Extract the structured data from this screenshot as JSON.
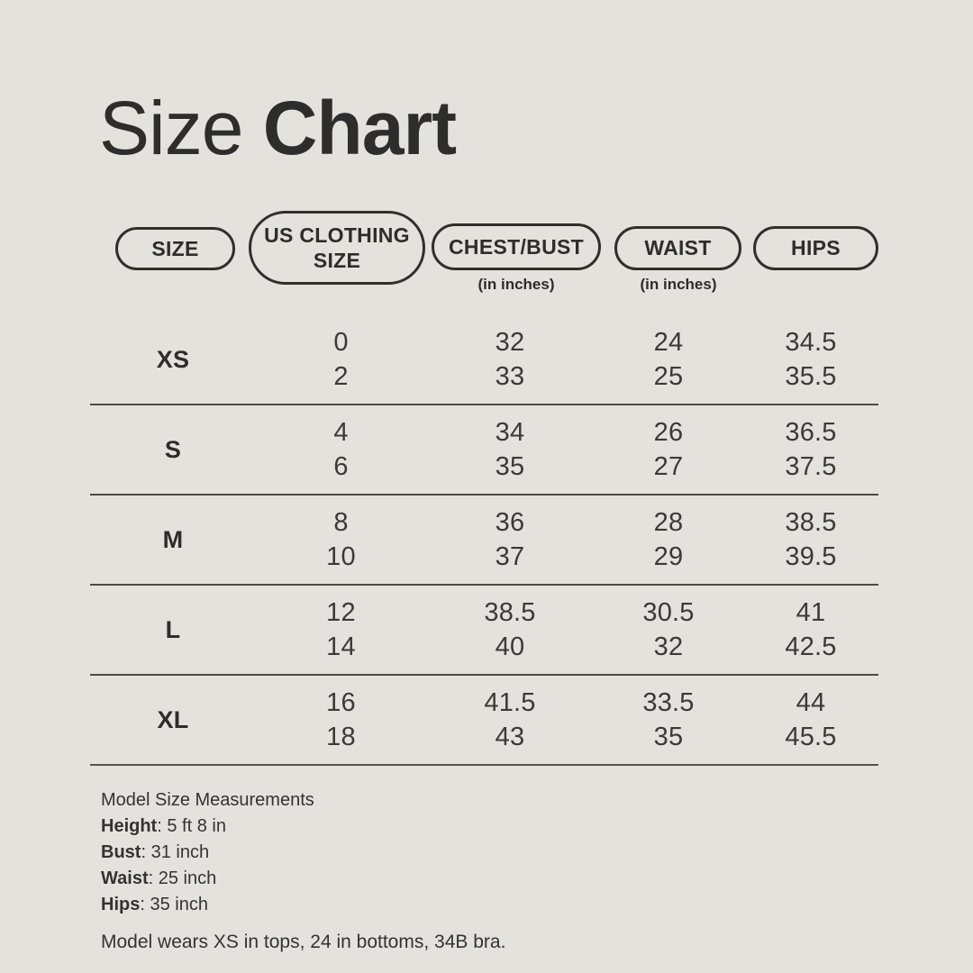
{
  "title": {
    "regular": "Size",
    "bold": "Chart"
  },
  "colors": {
    "background": "#e4e2dc",
    "text": "#2d2d2b",
    "numbers": "#3a3a38",
    "divider_line": "#4a4a46",
    "pill_border": "#2f2f2d"
  },
  "table_header": [
    {
      "label": "SIZE",
      "sub": ""
    },
    {
      "label": "US CLOTHING SIZE",
      "sub": ""
    },
    {
      "label": "CHEST/BUST",
      "sub": "(in inches)"
    },
    {
      "label": "WAIST",
      "sub": "(in inches)"
    },
    {
      "label": "HIPS",
      "sub": ""
    }
  ],
  "chart_data": {
    "type": "table",
    "title": "Size Chart",
    "columns": [
      "SIZE",
      "US CLOTHING SIZE",
      "CHEST/BUST (in inches)",
      "WAIST (in inches)",
      "HIPS"
    ],
    "rows": [
      {
        "size": "XS",
        "us_clothing_size": [
          "0",
          "2"
        ],
        "chest_bust_in": [
          "32",
          "33"
        ],
        "waist_in": [
          "24",
          "25"
        ],
        "hips_in": [
          "34.5",
          "35.5"
        ]
      },
      {
        "size": "S",
        "us_clothing_size": [
          "4",
          "6"
        ],
        "chest_bust_in": [
          "34",
          "35"
        ],
        "waist_in": [
          "26",
          "27"
        ],
        "hips_in": [
          "36.5",
          "37.5"
        ]
      },
      {
        "size": "M",
        "us_clothing_size": [
          "8",
          "10"
        ],
        "chest_bust_in": [
          "36",
          "37"
        ],
        "waist_in": [
          "28",
          "29"
        ],
        "hips_in": [
          "38.5",
          "39.5"
        ]
      },
      {
        "size": "L",
        "us_clothing_size": [
          "12",
          "14"
        ],
        "chest_bust_in": [
          "38.5",
          "40"
        ],
        "waist_in": [
          "30.5",
          "32"
        ],
        "hips_in": [
          "41",
          "42.5"
        ]
      },
      {
        "size": "XL",
        "us_clothing_size": [
          "16",
          "18"
        ],
        "chest_bust_in": [
          "41.5",
          "43"
        ],
        "waist_in": [
          "33.5",
          "35"
        ],
        "hips_in": [
          "44",
          "45.5"
        ]
      }
    ]
  },
  "footer": {
    "heading": "Model Size Measurements",
    "colon": ": ",
    "measurements": [
      {
        "label": "Height",
        "value": "5 ft 8 in"
      },
      {
        "label": "Bust",
        "value": "31 inch"
      },
      {
        "label": "Waist",
        "value": "25 inch"
      },
      {
        "label": "Hips",
        "value": "35 inch"
      }
    ],
    "note": "Model wears XS in tops, 24 in bottoms, 34B bra."
  }
}
